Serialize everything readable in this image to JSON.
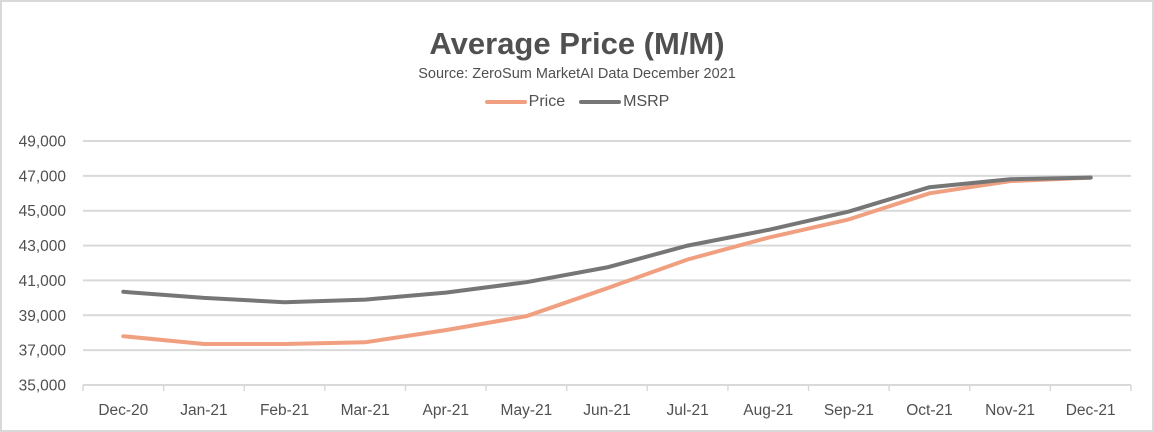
{
  "chart_data": {
    "type": "line",
    "title": "Average Price (M/M)",
    "subtitle": "Source: ZeroSum MarketAI Data December 2021",
    "xlabel": "",
    "ylabel": "",
    "categories": [
      "Dec-20",
      "Jan-21",
      "Feb-21",
      "Mar-21",
      "Apr-21",
      "May-21",
      "Jun-21",
      "Jul-21",
      "Aug-21",
      "Sep-21",
      "Oct-21",
      "Nov-21",
      "Dec-21"
    ],
    "series": [
      {
        "name": "Price",
        "color": "#f0a080",
        "values": [
          37800,
          37350,
          37350,
          37450,
          38150,
          38950,
          40550,
          42200,
          43450,
          44500,
          46000,
          46700,
          46900
        ]
      },
      {
        "name": "MSRP",
        "color": "#767676",
        "values": [
          40350,
          40000,
          39750,
          39900,
          40300,
          40900,
          41750,
          43000,
          43900,
          44950,
          46350,
          46800,
          46900
        ]
      }
    ],
    "ylim": [
      35000,
      49000
    ],
    "yticks": [
      35000,
      37000,
      39000,
      41000,
      43000,
      45000,
      47000,
      49000
    ],
    "ytick_labels": [
      "35,000",
      "37,000",
      "39,000",
      "41,000",
      "43,000",
      "45,000",
      "47,000",
      "49,000"
    ],
    "grid": true,
    "legend": "top-center"
  }
}
